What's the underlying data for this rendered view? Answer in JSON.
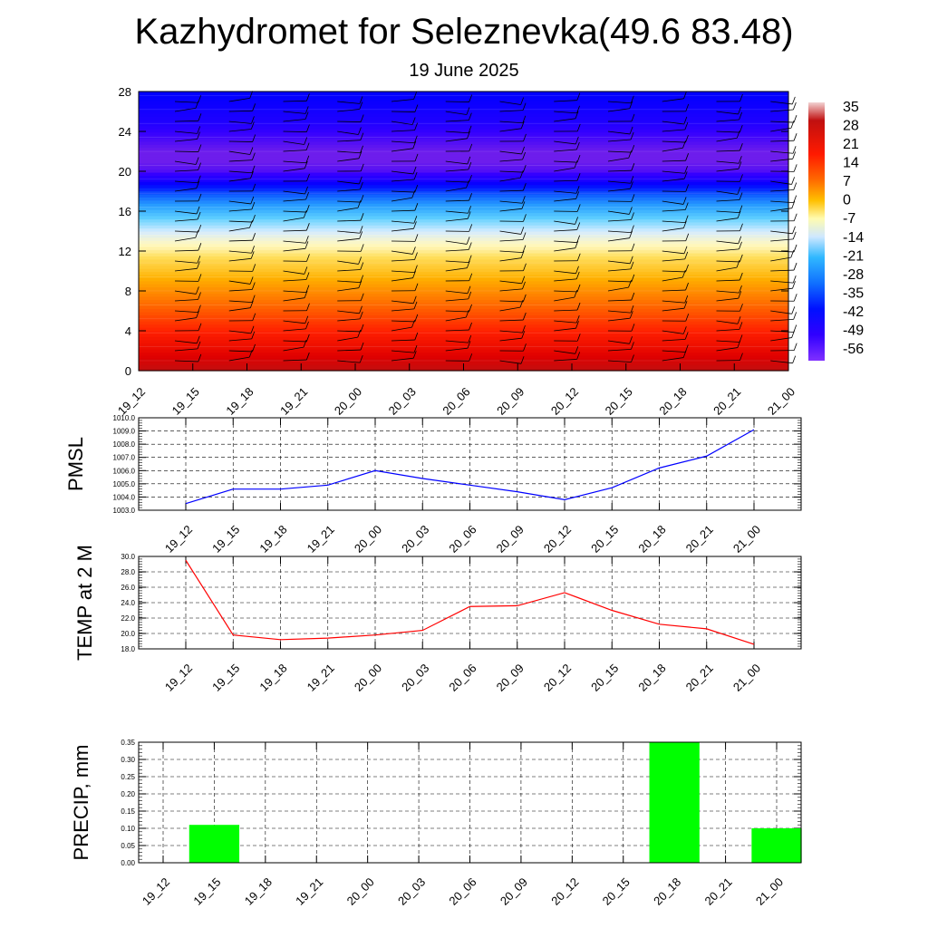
{
  "header": {
    "title": "Kazhydromet for Seleznevka(49.6 83.48)",
    "subtitle": "19 June 2025"
  },
  "chart_data": [
    {
      "type": "heatmap",
      "title": "",
      "xlabel": "",
      "ylabel": "",
      "x_ticks": [
        "19_12",
        "19_15",
        "19_18",
        "19_21",
        "20_00",
        "20_03",
        "20_06",
        "20_09",
        "20_12",
        "20_15",
        "20_18",
        "20_21",
        "21_00"
      ],
      "y_ticks": [
        "0",
        "4",
        "8",
        "12",
        "16",
        "20",
        "24",
        "28"
      ],
      "ylim": [
        0,
        28
      ],
      "colorbar": {
        "labels": [
          "35",
          "28",
          "21",
          "14",
          "7",
          "0",
          "-7",
          "-14",
          "-21",
          "-28",
          "-35",
          "-42",
          "-49",
          "-56"
        ],
        "values": [
          35,
          28,
          21,
          14,
          7,
          0,
          -7,
          -14,
          -21,
          -28,
          -35,
          -42,
          -49,
          -56
        ]
      },
      "levels_km": [
        0,
        1,
        2,
        3,
        4,
        5,
        6,
        7,
        8,
        9,
        10,
        11,
        12,
        13,
        14,
        15,
        16,
        17,
        18,
        19,
        20,
        21,
        22,
        23,
        24,
        25,
        26,
        27,
        28
      ],
      "temperature_by_level": [
        30,
        26,
        22,
        19,
        16,
        13,
        10,
        7,
        4,
        1,
        -3,
        -6,
        -10,
        -13,
        -17,
        -23,
        -30,
        -37,
        -45,
        -52,
        -56,
        -57,
        -57,
        -56,
        -55,
        -53,
        -52,
        -51,
        -50
      ],
      "barbs": "wind barbs plotted at each time and level"
    },
    {
      "type": "line",
      "ylabel": "PMSL",
      "x_ticks": [
        "19_12",
        "19_15",
        "19_18",
        "19_21",
        "20_00",
        "20_03",
        "20_06",
        "20_09",
        "20_12",
        "20_15",
        "20_18",
        "20_21",
        "21_00"
      ],
      "y_ticks": [
        "1003.0",
        "1004.0",
        "1005.0",
        "1006.0",
        "1007.0",
        "1008.0",
        "1009.0",
        "1010.0"
      ],
      "ylim": [
        1003,
        1010
      ],
      "series": [
        {
          "values": [
            1003.5,
            1004.6,
            1004.6,
            1004.9,
            1006.0,
            1005.4,
            1004.9,
            1004.4,
            1003.8,
            1004.7,
            1006.2,
            1007.1,
            1009.1
          ],
          "color": "#0000ff"
        }
      ]
    },
    {
      "type": "line",
      "ylabel": "TEMP at 2 M",
      "x_ticks": [
        "19_12",
        "19_15",
        "19_18",
        "19_21",
        "20_00",
        "20_03",
        "20_06",
        "20_09",
        "20_12",
        "20_15",
        "20_18",
        "20_21",
        "21_00"
      ],
      "y_ticks": [
        "18.0",
        "20.0",
        "22.0",
        "24.0",
        "26.0",
        "28.0",
        "30.0"
      ],
      "ylim": [
        18,
        30
      ],
      "series": [
        {
          "values": [
            29.5,
            19.8,
            19.2,
            19.4,
            19.8,
            20.4,
            23.5,
            23.6,
            25.3,
            23.0,
            21.2,
            20.6,
            18.6
          ],
          "color": "#ff0000"
        }
      ]
    },
    {
      "type": "bar",
      "ylabel": "PRECIP, mm",
      "categories": [
        "19_12",
        "19_15",
        "19_18",
        "19_21",
        "20_00",
        "20_03",
        "20_06",
        "20_09",
        "20_12",
        "20_15",
        "20_18",
        "20_21",
        "21_00"
      ],
      "y_ticks": [
        "0.00",
        "0.05",
        "0.10",
        "0.15",
        "0.20",
        "0.25",
        "0.30",
        "0.35"
      ],
      "ylim": [
        0,
        0.35
      ],
      "values": [
        0,
        0.11,
        0,
        0,
        0,
        0,
        0,
        0,
        0,
        0,
        0.35,
        0,
        0.1
      ],
      "color": "#00ff00"
    }
  ]
}
